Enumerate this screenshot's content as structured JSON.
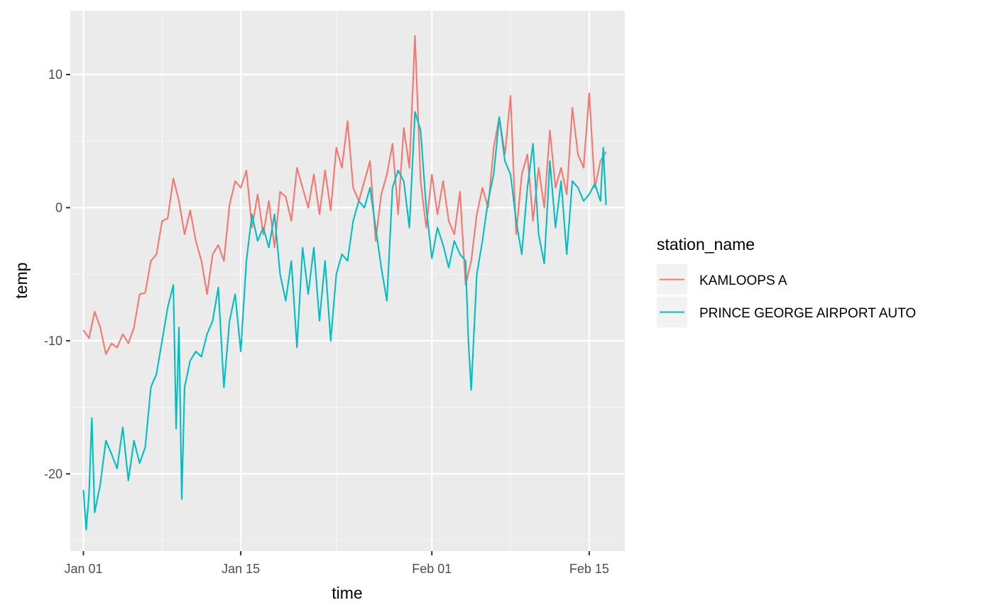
{
  "chart_data": {
    "type": "line",
    "xlabel": "time",
    "ylabel": "temp",
    "x_unit": "date",
    "year": 2020,
    "xlim": [
      "2019-12-30T20:00",
      "2020-02-18T04:00"
    ],
    "ylim": [
      -25.8,
      14.8
    ],
    "x_ticks": [
      {
        "date": "2020-01-01T00:00",
        "label": "Jan 01"
      },
      {
        "date": "2020-01-15T00:00",
        "label": "Jan 15"
      },
      {
        "date": "2020-02-01T00:00",
        "label": "Feb 01"
      },
      {
        "date": "2020-02-15T00:00",
        "label": "Feb 15"
      }
    ],
    "x_minor_ticks": [
      "2020-01-08T00:00",
      "2020-01-23T12:00",
      "2020-02-08T00:00"
    ],
    "y_ticks": [
      10,
      0,
      -10,
      -20
    ],
    "y_tick_labels": [
      "10",
      "0",
      "-10",
      "-20"
    ],
    "y_minor_ticks": [
      5,
      -5,
      -15,
      -25
    ],
    "grid": true,
    "legend": {
      "title": "station_name",
      "position": "right"
    },
    "series": [
      {
        "name": "KAMLOOPS A",
        "color": "#F8766D",
        "points": [
          [
            "2020-01-01T00:00",
            -9.2
          ],
          [
            "2020-01-01T12:00",
            -9.8
          ],
          [
            "2020-01-02T00:00",
            -7.8
          ],
          [
            "2020-01-02T12:00",
            -9.0
          ],
          [
            "2020-01-03T00:00",
            -11.0
          ],
          [
            "2020-01-03T12:00",
            -10.2
          ],
          [
            "2020-01-04T00:00",
            -10.5
          ],
          [
            "2020-01-04T12:00",
            -9.5
          ],
          [
            "2020-01-05T00:00",
            -10.2
          ],
          [
            "2020-01-05T12:00",
            -9.0
          ],
          [
            "2020-01-06T00:00",
            -6.5
          ],
          [
            "2020-01-06T12:00",
            -6.4
          ],
          [
            "2020-01-07T00:00",
            -4.0
          ],
          [
            "2020-01-07T12:00",
            -3.5
          ],
          [
            "2020-01-08T00:00",
            -1.0
          ],
          [
            "2020-01-08T12:00",
            -0.8
          ],
          [
            "2020-01-09T00:00",
            2.2
          ],
          [
            "2020-01-09T12:00",
            0.5
          ],
          [
            "2020-01-10T00:00",
            -2.0
          ],
          [
            "2020-01-10T12:00",
            -0.2
          ],
          [
            "2020-01-11T00:00",
            -2.5
          ],
          [
            "2020-01-11T12:00",
            -4.0
          ],
          [
            "2020-01-12T00:00",
            -6.5
          ],
          [
            "2020-01-12T12:00",
            -3.5
          ],
          [
            "2020-01-13T00:00",
            -2.8
          ],
          [
            "2020-01-13T12:00",
            -4.0
          ],
          [
            "2020-01-14T00:00",
            0.2
          ],
          [
            "2020-01-14T12:00",
            2.0
          ],
          [
            "2020-01-15T00:00",
            1.5
          ],
          [
            "2020-01-15T12:00",
            2.8
          ],
          [
            "2020-01-16T00:00",
            -1.5
          ],
          [
            "2020-01-16T12:00",
            1.0
          ],
          [
            "2020-01-17T00:00",
            -2.0
          ],
          [
            "2020-01-17T12:00",
            0.5
          ],
          [
            "2020-01-18T00:00",
            -3.0
          ],
          [
            "2020-01-18T12:00",
            1.2
          ],
          [
            "2020-01-19T00:00",
            0.8
          ],
          [
            "2020-01-19T12:00",
            -1.0
          ],
          [
            "2020-01-20T00:00",
            3.0
          ],
          [
            "2020-01-20T12:00",
            1.5
          ],
          [
            "2020-01-21T00:00",
            0.0
          ],
          [
            "2020-01-21T12:00",
            2.5
          ],
          [
            "2020-01-22T00:00",
            -0.5
          ],
          [
            "2020-01-22T12:00",
            2.8
          ],
          [
            "2020-01-23T00:00",
            -0.2
          ],
          [
            "2020-01-23T12:00",
            4.5
          ],
          [
            "2020-01-24T00:00",
            3.0
          ],
          [
            "2020-01-24T12:00",
            6.5
          ],
          [
            "2020-01-25T00:00",
            1.5
          ],
          [
            "2020-01-25T12:00",
            0.5
          ],
          [
            "2020-01-26T00:00",
            2.0
          ],
          [
            "2020-01-26T12:00",
            3.5
          ],
          [
            "2020-01-27T00:00",
            -2.5
          ],
          [
            "2020-01-27T12:00",
            1.0
          ],
          [
            "2020-01-28T00:00",
            2.5
          ],
          [
            "2020-01-28T12:00",
            4.8
          ],
          [
            "2020-01-29T00:00",
            -0.5
          ],
          [
            "2020-01-29T12:00",
            6.0
          ],
          [
            "2020-01-30T00:00",
            3.0
          ],
          [
            "2020-01-30T12:00",
            12.9
          ],
          [
            "2020-01-31T00:00",
            2.0
          ],
          [
            "2020-01-31T12:00",
            -1.5
          ],
          [
            "2020-02-01T00:00",
            2.5
          ],
          [
            "2020-02-01T12:00",
            -0.5
          ],
          [
            "2020-02-02T00:00",
            2.0
          ],
          [
            "2020-02-02T12:00",
            -1.0
          ],
          [
            "2020-02-03T00:00",
            -2.0
          ],
          [
            "2020-02-03T12:00",
            1.2
          ],
          [
            "2020-02-04T00:00",
            -5.8
          ],
          [
            "2020-02-04T12:00",
            -4.0
          ],
          [
            "2020-02-05T00:00",
            -0.5
          ],
          [
            "2020-02-05T12:00",
            1.5
          ],
          [
            "2020-02-06T00:00",
            0.0
          ],
          [
            "2020-02-06T12:00",
            4.5
          ],
          [
            "2020-02-07T00:00",
            6.8
          ],
          [
            "2020-02-07T12:00",
            4.0
          ],
          [
            "2020-02-08T00:00",
            8.4
          ],
          [
            "2020-02-08T12:00",
            -2.0
          ],
          [
            "2020-02-09T00:00",
            2.5
          ],
          [
            "2020-02-09T12:00",
            4.0
          ],
          [
            "2020-02-10T00:00",
            -1.0
          ],
          [
            "2020-02-10T12:00",
            3.0
          ],
          [
            "2020-02-11T00:00",
            0.0
          ],
          [
            "2020-02-11T12:00",
            5.8
          ],
          [
            "2020-02-12T00:00",
            1.5
          ],
          [
            "2020-02-12T12:00",
            3.0
          ],
          [
            "2020-02-13T00:00",
            1.0
          ],
          [
            "2020-02-13T12:00",
            7.5
          ],
          [
            "2020-02-14T00:00",
            4.0
          ],
          [
            "2020-02-14T12:00",
            3.0
          ],
          [
            "2020-02-15T00:00",
            8.6
          ],
          [
            "2020-02-15T12:00",
            1.5
          ],
          [
            "2020-02-16T00:00",
            3.5
          ],
          [
            "2020-02-16T12:00",
            4.2
          ]
        ]
      },
      {
        "name": "PRINCE GEORGE AIRPORT AUTO",
        "color": "#00BFC4",
        "points": [
          [
            "2020-01-01T00:00",
            -21.2
          ],
          [
            "2020-01-01T06:00",
            -24.2
          ],
          [
            "2020-01-01T12:00",
            -21.5
          ],
          [
            "2020-01-01T18:00",
            -15.8
          ],
          [
            "2020-01-02T00:00",
            -22.9
          ],
          [
            "2020-01-02T12:00",
            -20.8
          ],
          [
            "2020-01-03T00:00",
            -17.5
          ],
          [
            "2020-01-03T12:00",
            -18.5
          ],
          [
            "2020-01-04T00:00",
            -19.6
          ],
          [
            "2020-01-04T12:00",
            -16.5
          ],
          [
            "2020-01-05T00:00",
            -20.5
          ],
          [
            "2020-01-05T12:00",
            -17.5
          ],
          [
            "2020-01-06T00:00",
            -19.2
          ],
          [
            "2020-01-06T12:00",
            -18.0
          ],
          [
            "2020-01-07T00:00",
            -13.5
          ],
          [
            "2020-01-07T12:00",
            -12.5
          ],
          [
            "2020-01-08T00:00",
            -10.0
          ],
          [
            "2020-01-08T12:00",
            -7.5
          ],
          [
            "2020-01-09T00:00",
            -5.8
          ],
          [
            "2020-01-09T06:00",
            -16.6
          ],
          [
            "2020-01-09T12:00",
            -9.0
          ],
          [
            "2020-01-09T18:00",
            -21.9
          ],
          [
            "2020-01-10T00:00",
            -13.5
          ],
          [
            "2020-01-10T12:00",
            -11.5
          ],
          [
            "2020-01-11T00:00",
            -10.8
          ],
          [
            "2020-01-11T12:00",
            -11.2
          ],
          [
            "2020-01-12T00:00",
            -9.5
          ],
          [
            "2020-01-12T12:00",
            -8.5
          ],
          [
            "2020-01-13T00:00",
            -6.0
          ],
          [
            "2020-01-13T12:00",
            -13.5
          ],
          [
            "2020-01-14T00:00",
            -8.5
          ],
          [
            "2020-01-14T12:00",
            -6.5
          ],
          [
            "2020-01-15T00:00",
            -10.8
          ],
          [
            "2020-01-15T12:00",
            -4.0
          ],
          [
            "2020-01-16T00:00",
            -0.5
          ],
          [
            "2020-01-16T12:00",
            -2.5
          ],
          [
            "2020-01-17T00:00",
            -1.5
          ],
          [
            "2020-01-17T12:00",
            -3.0
          ],
          [
            "2020-01-18T00:00",
            -0.5
          ],
          [
            "2020-01-18T12:00",
            -5.0
          ],
          [
            "2020-01-19T00:00",
            -7.0
          ],
          [
            "2020-01-19T12:00",
            -4.0
          ],
          [
            "2020-01-20T00:00",
            -10.5
          ],
          [
            "2020-01-20T12:00",
            -3.0
          ],
          [
            "2020-01-21T00:00",
            -6.5
          ],
          [
            "2020-01-21T12:00",
            -3.0
          ],
          [
            "2020-01-22T00:00",
            -8.5
          ],
          [
            "2020-01-22T12:00",
            -4.0
          ],
          [
            "2020-01-23T00:00",
            -10.0
          ],
          [
            "2020-01-23T12:00",
            -5.0
          ],
          [
            "2020-01-24T00:00",
            -3.5
          ],
          [
            "2020-01-24T12:00",
            -4.0
          ],
          [
            "2020-01-25T00:00",
            -1.0
          ],
          [
            "2020-01-25T12:00",
            0.5
          ],
          [
            "2020-01-26T00:00",
            0.0
          ],
          [
            "2020-01-26T12:00",
            1.5
          ],
          [
            "2020-01-27T00:00",
            -1.5
          ],
          [
            "2020-01-27T12:00",
            -4.5
          ],
          [
            "2020-01-28T00:00",
            -7.0
          ],
          [
            "2020-01-28T12:00",
            1.5
          ],
          [
            "2020-01-29T00:00",
            2.8
          ],
          [
            "2020-01-29T12:00",
            2.0
          ],
          [
            "2020-01-30T00:00",
            -1.5
          ],
          [
            "2020-01-30T12:00",
            7.2
          ],
          [
            "2020-01-31T00:00",
            5.8
          ],
          [
            "2020-01-31T12:00",
            0.0
          ],
          [
            "2020-02-01T00:00",
            -3.8
          ],
          [
            "2020-02-01T12:00",
            -1.5
          ],
          [
            "2020-02-02T00:00",
            -2.8
          ],
          [
            "2020-02-02T12:00",
            -4.5
          ],
          [
            "2020-02-03T00:00",
            -2.5
          ],
          [
            "2020-02-03T12:00",
            -3.5
          ],
          [
            "2020-02-04T00:00",
            -4.0
          ],
          [
            "2020-02-04T06:00",
            -10.0
          ],
          [
            "2020-02-04T12:00",
            -13.7
          ],
          [
            "2020-02-05T00:00",
            -5.0
          ],
          [
            "2020-02-05T12:00",
            -2.5
          ],
          [
            "2020-02-06T00:00",
            0.5
          ],
          [
            "2020-02-06T12:00",
            2.5
          ],
          [
            "2020-02-07T00:00",
            6.8
          ],
          [
            "2020-02-07T12:00",
            3.5
          ],
          [
            "2020-02-08T00:00",
            2.5
          ],
          [
            "2020-02-08T12:00",
            -1.0
          ],
          [
            "2020-02-09T00:00",
            -3.5
          ],
          [
            "2020-02-09T12:00",
            1.5
          ],
          [
            "2020-02-10T00:00",
            4.8
          ],
          [
            "2020-02-10T12:00",
            -2.0
          ],
          [
            "2020-02-11T00:00",
            -4.2
          ],
          [
            "2020-02-11T12:00",
            3.5
          ],
          [
            "2020-02-12T00:00",
            -1.5
          ],
          [
            "2020-02-12T12:00",
            2.0
          ],
          [
            "2020-02-13T00:00",
            -3.5
          ],
          [
            "2020-02-13T12:00",
            2.0
          ],
          [
            "2020-02-14T00:00",
            1.5
          ],
          [
            "2020-02-14T12:00",
            0.5
          ],
          [
            "2020-02-15T00:00",
            1.0
          ],
          [
            "2020-02-15T12:00",
            1.8
          ],
          [
            "2020-02-16T00:00",
            0.5
          ],
          [
            "2020-02-16T06:00",
            4.5
          ],
          [
            "2020-02-16T12:00",
            0.2
          ]
        ]
      }
    ]
  },
  "colors": {
    "panel_background": "#EBEBEB",
    "grid_major": "#FFFFFF",
    "grid_minor": "#F6F6F6",
    "tick_text": "#4D4D4D",
    "tick_mark": "#333333",
    "legend_key_background": "#F2F2F2"
  }
}
